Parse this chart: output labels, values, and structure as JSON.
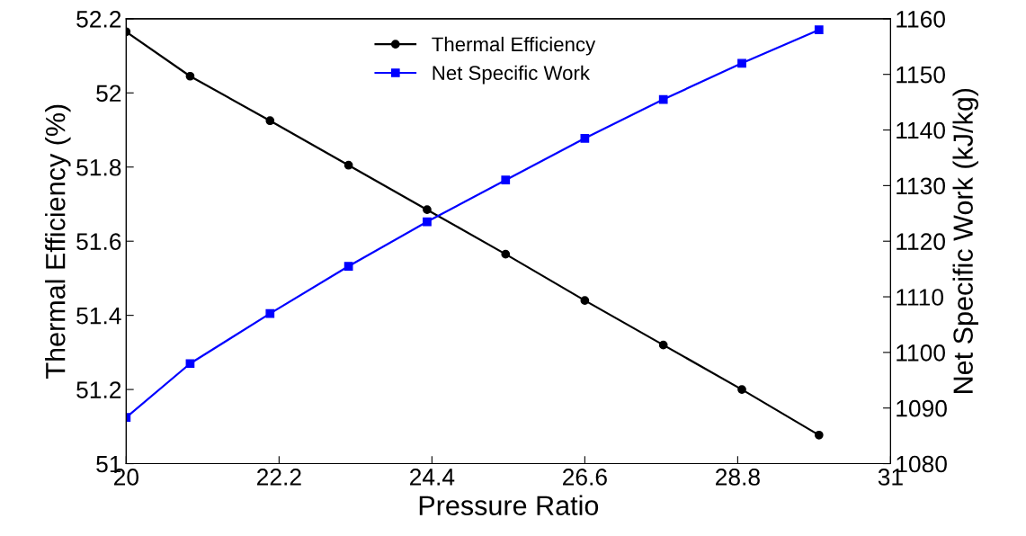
{
  "chart_data": {
    "type": "line",
    "xlabel": "Pressure Ratio",
    "ylabel": "Thermal Efficiency (%)",
    "y2label": "Net Specific Work (kJ/kg)",
    "x": [
      20,
      20.92,
      22.07,
      23.2,
      24.33,
      25.46,
      26.6,
      27.73,
      28.86,
      29.97
    ],
    "series": [
      {
        "name": "Thermal Efficiency",
        "color": "#000000",
        "marker": "circle",
        "values": [
          52.165,
          52.045,
          51.925,
          51.805,
          51.685,
          51.565,
          51.44,
          51.32,
          51.2,
          51.077
        ]
      },
      {
        "name": "Net Specific Work",
        "color": "#0000ff",
        "marker": "square",
        "axis": "y2",
        "values": [
          1088.3,
          1098,
          1107,
          1115.5,
          1123.5,
          1131,
          1138.5,
          1145.5,
          1152,
          1158
        ]
      }
    ],
    "xlim": [
      20,
      31
    ],
    "xticks": [
      20,
      22.2,
      24.4,
      26.6,
      28.8,
      31
    ],
    "ylim": [
      51,
      52.2
    ],
    "yticks": [
      51,
      51.2,
      51.4,
      51.6,
      51.8,
      52,
      52.2
    ],
    "y2lim": [
      1080,
      1160
    ],
    "y2ticks": [
      1080,
      1090,
      1100,
      1110,
      1120,
      1130,
      1140,
      1150,
      1160
    ],
    "grid": false,
    "legend": "top",
    "line_style": "solid"
  }
}
